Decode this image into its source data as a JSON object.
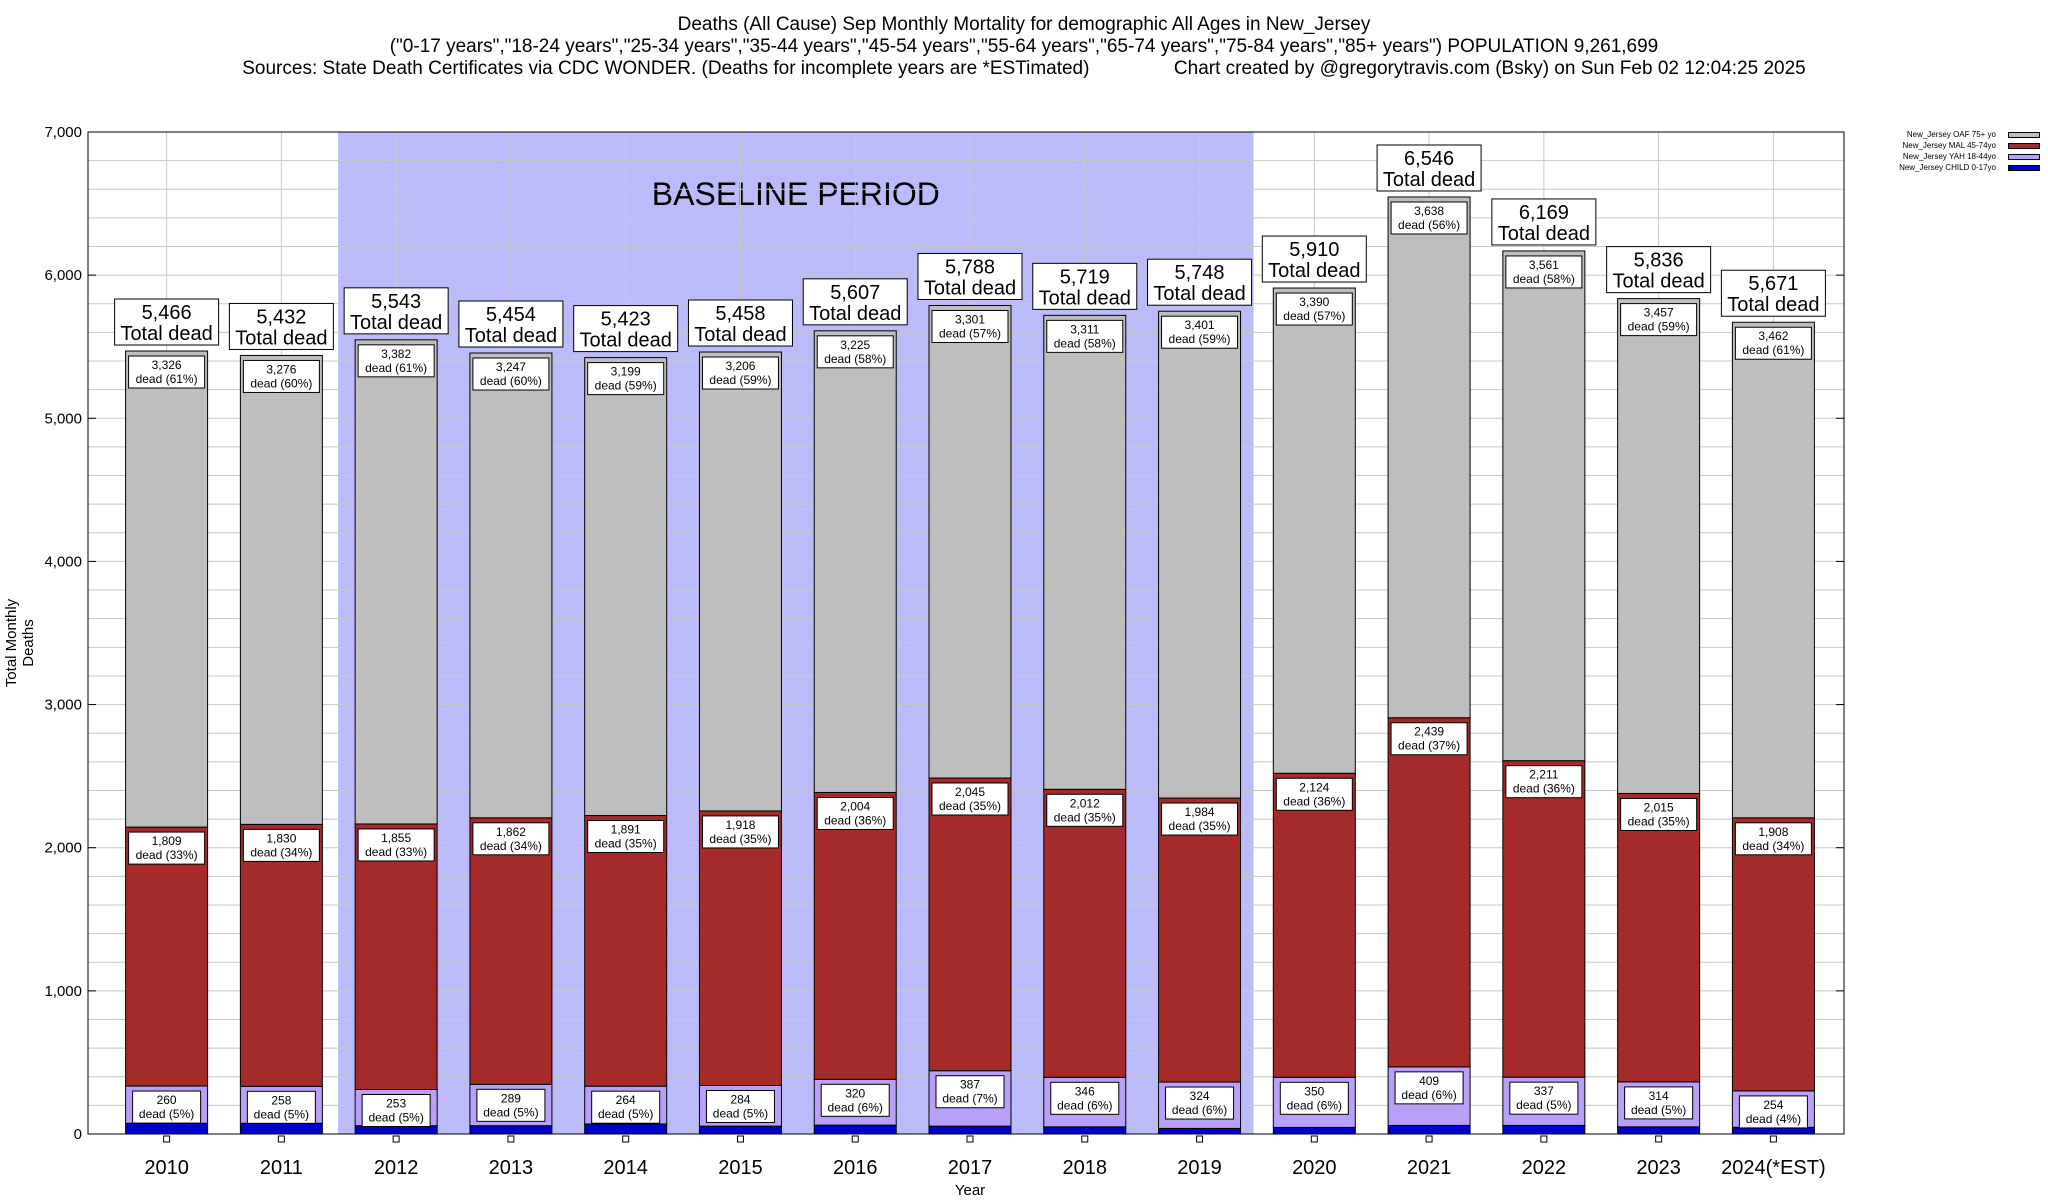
{
  "titles": {
    "line1": "Deaths (All Cause) Sep Monthly Mortality for demographic All Ages in New_Jersey",
    "line2": "(\"0-17 years\",\"18-24 years\",\"25-34 years\",\"35-44 years\",\"45-54 years\",\"55-64 years\",\"65-74 years\",\"75-84 years\",\"85+ years\") POPULATION 9,261,699",
    "line3": "Sources: State Death Certificates via CDC WONDER. (Deaths for incomplete years are *ESTimated)                Chart created by @gregorytravis.com (Bsky) on Sun Feb 02 12:04:25 2025"
  },
  "chart_data": {
    "type": "bar",
    "stacked": true,
    "categories": [
      "2010",
      "2011",
      "2012",
      "2013",
      "2014",
      "2015",
      "2016",
      "2017",
      "2018",
      "2019",
      "2020",
      "2021",
      "2022",
      "2023",
      "2024(*EST)"
    ],
    "series": [
      {
        "name": "New_Jersey CHILD 0-17yo",
        "color": "#0000cc",
        "values": [
          75,
          75,
          58,
          58,
          70,
          55,
          62,
          55,
          50,
          39,
          46,
          60,
          60,
          50,
          47
        ]
      },
      {
        "name": "New_Jersey YAH 18-44yo",
        "color": "#b8a0f8",
        "values": [
          260,
          258,
          253,
          289,
          264,
          284,
          320,
          387,
          346,
          324,
          350,
          409,
          337,
          314,
          254
        ]
      },
      {
        "name": "New_Jersey MAL 45-74yo",
        "color": "#a52a2a",
        "values": [
          1809,
          1830,
          1855,
          1862,
          1891,
          1918,
          2004,
          2045,
          2012,
          1984,
          2124,
          2439,
          2211,
          2015,
          1908
        ]
      },
      {
        "name": "New_Jersey OAF 75+ yo",
        "color": "#bebebe",
        "values": [
          3326,
          3276,
          3382,
          3247,
          3199,
          3206,
          3225,
          3301,
          3311,
          3401,
          3390,
          3638,
          3561,
          3457,
          3462
        ]
      }
    ],
    "totals": [
      "5,466",
      "5,432",
      "5,543",
      "5,454",
      "5,423",
      "5,458",
      "5,607",
      "5,788",
      "5,719",
      "5,748",
      "5,910",
      "6,546",
      "6,169",
      "5,836",
      "5,671"
    ],
    "total_suffix": "Total dead",
    "label_prefix": "dead",
    "yah_labels": {
      "counts": [
        "260",
        "258",
        "253",
        "289",
        "264",
        "284",
        "320",
        "387",
        "346",
        "324",
        "350",
        "409",
        "337",
        "314",
        "254"
      ],
      "pcts": [
        "(5%)",
        "(5%)",
        "(5%)",
        "(5%)",
        "(5%)",
        "(5%)",
        "(6%)",
        "(7%)",
        "(6%)",
        "(6%)",
        "(6%)",
        "(6%)",
        "(5%)",
        "(5%)",
        "(4%)"
      ]
    },
    "mal_labels": {
      "counts": [
        "1,809",
        "1,830",
        "1,855",
        "1,862",
        "1,891",
        "1,918",
        "2,004",
        "2,045",
        "2,012",
        "1,984",
        "2,124",
        "2,439",
        "2,211",
        "2,015",
        "1,908"
      ],
      "pcts": [
        "(33%)",
        "(34%)",
        "(33%)",
        "(34%)",
        "(35%)",
        "(35%)",
        "(36%)",
        "(35%)",
        "(35%)",
        "(35%)",
        "(36%)",
        "(37%)",
        "(36%)",
        "(35%)",
        "(34%)"
      ]
    },
    "oaf_labels": {
      "counts": [
        "3,326",
        "3,276",
        "3,382",
        "3,247",
        "3,199",
        "3,206",
        "3,225",
        "3,301",
        "3,311",
        "3,401",
        "3,390",
        "3,638",
        "3,561",
        "3,457",
        "3,462"
      ],
      "pcts": [
        "(61%)",
        "(60%)",
        "(61%)",
        "(60%)",
        "(59%)",
        "(59%)",
        "(58%)",
        "(57%)",
        "(58%)",
        "(59%)",
        "(57%)",
        "(56%)",
        "(58%)",
        "(59%)",
        "(61%)"
      ]
    },
    "ylim": [
      0,
      7000
    ],
    "yticks": [
      0,
      1000,
      2000,
      3000,
      4000,
      5000,
      6000,
      7000
    ],
    "ytick_labels": [
      "0",
      "1,000",
      "2,000",
      "3,000",
      "4,000",
      "5,000",
      "6,000",
      "7,000"
    ],
    "xlabel": "Year",
    "ylabel": "Total Monthly Deaths",
    "baseline": {
      "label": "BASELINE PERIOD",
      "from": "2012",
      "to": "2019",
      "color": "#bbbbfa"
    },
    "grid": true,
    "legend_position": "top-right"
  }
}
